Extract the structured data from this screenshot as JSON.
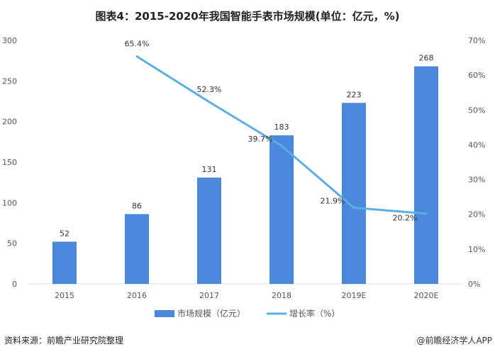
{
  "title": "图表4：2015-2020年我国智能手表市场规模(单位：亿元，%)",
  "source": "资料来源：前瞻产业研究院整理",
  "credit": "@前瞻经济学人APP",
  "chart_data": {
    "type": "bar",
    "categories": [
      "2015",
      "2016",
      "2017",
      "2018",
      "2019E",
      "2020E"
    ],
    "series": [
      {
        "name": "市场规模（亿元）",
        "type": "bar",
        "axis": "left",
        "values": [
          52,
          86,
          131,
          183,
          223,
          268
        ],
        "color": "#4a89dc"
      },
      {
        "name": "增长率（%）",
        "type": "line",
        "axis": "right",
        "values": [
          null,
          65.4,
          52.3,
          39.7,
          21.9,
          20.2
        ],
        "color": "#5aaee3"
      }
    ],
    "y_left": {
      "range": [
        0,
        300
      ],
      "ticks": [
        0,
        50,
        100,
        150,
        200,
        250,
        300
      ]
    },
    "y_right": {
      "range": [
        0,
        70
      ],
      "ticks": [
        "0%",
        "10%",
        "20%",
        "30%",
        "40%",
        "50%",
        "60%",
        "70%"
      ]
    },
    "grid": false,
    "legend": "bottom"
  }
}
